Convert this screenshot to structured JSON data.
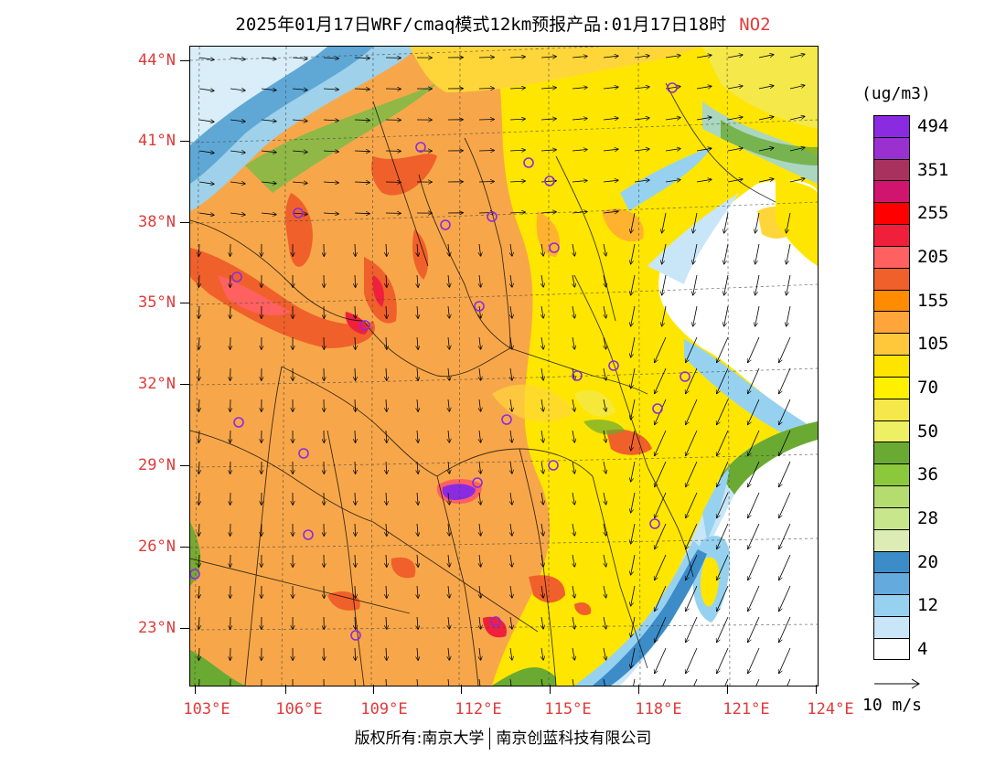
{
  "title": {
    "text": "2025年01月17日WRF/cmaq模式12km预报产品:01月17日18时",
    "pollutant": "NO2"
  },
  "legend": {
    "unit": "(ug/m3)",
    "bins_top_to_bottom": [
      "#8a2be2",
      "#9b30d0",
      "#a8325e",
      "#d0156e",
      "#ff0000",
      "#f0203c",
      "#ff6060",
      "#f0602a",
      "#ff8c00",
      "#ffa53a",
      "#ffc83a",
      "#ffe400",
      "#fff000",
      "#f4e84a",
      "#eef064",
      "#6aaa32",
      "#8cc83c",
      "#b4dc6e",
      "#c8e68c",
      "#dcecb4",
      "#3c8cc8",
      "#64aadc",
      "#96d2f0",
      "#c8e6f8",
      "#ffffff"
    ],
    "labels": [
      {
        "text": "494",
        "bin": 1
      },
      {
        "text": "351",
        "bin": 3
      },
      {
        "text": "255",
        "bin": 5
      },
      {
        "text": "205",
        "bin": 7
      },
      {
        "text": "155",
        "bin": 9
      },
      {
        "text": "105",
        "bin": 11
      },
      {
        "text": "70",
        "bin": 13
      },
      {
        "text": "50",
        "bin": 15
      },
      {
        "text": "36",
        "bin": 17
      },
      {
        "text": "28",
        "bin": 19
      },
      {
        "text": "20",
        "bin": 21
      },
      {
        "text": "12",
        "bin": 23
      },
      {
        "text": "4",
        "bin": 25
      }
    ]
  },
  "wind_scale": {
    "label": "10 m/s"
  },
  "axes": {
    "lat_labels": [
      "44°N",
      "41°N",
      "38°N",
      "35°N",
      "32°N",
      "29°N",
      "26°N",
      "23°N"
    ],
    "lon_labels": [
      "103°E",
      "106°E",
      "109°E",
      "112°E",
      "115°E",
      "118°E",
      "121°E",
      "124°E"
    ]
  },
  "footer": {
    "left": "版权所有:南京大学",
    "right": "南京创蓝科技有限公司"
  }
}
